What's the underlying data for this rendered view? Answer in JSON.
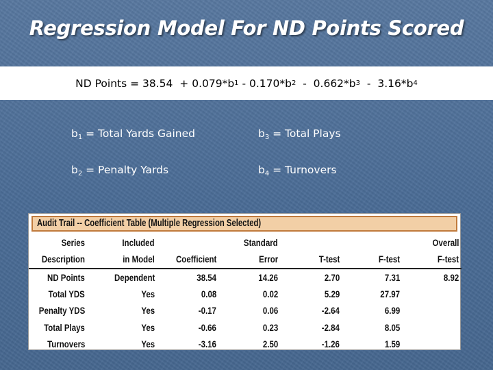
{
  "slide": {
    "title": "Regression Model For ND Points Scored",
    "equation": {
      "lhs": "ND Points = 38.54",
      "terms": [
        {
          "sign": "+",
          "coef": "0.079",
          "var": "b",
          "sub": "1"
        },
        {
          "sign": "-",
          "coef": "0.170",
          "var": "b",
          "sub": "2"
        },
        {
          "sign": "-",
          "coef": "0.662",
          "var": "b",
          "sub": "3"
        },
        {
          "sign": "-",
          "coef": "3.16",
          "var": "b",
          "sub": "4"
        }
      ]
    },
    "definitions": [
      {
        "var": "b",
        "sub": "1",
        "text": " = Total Yards Gained"
      },
      {
        "var": "b",
        "sub": "3",
        "text": " = Total Plays"
      },
      {
        "var": "b",
        "sub": "2",
        "text": " = Penalty Yards"
      },
      {
        "var": "b",
        "sub": "4",
        "text": " = Turnovers"
      }
    ]
  },
  "coef_table": {
    "caption": "Audit Trail -- Coefficient Table (Multiple Regression Selected)",
    "header_row1": [
      "Series",
      "Included",
      "",
      "Standard",
      "",
      "",
      "Overall"
    ],
    "header_row2": [
      "Description",
      "in Model",
      "Coefficient",
      "Error",
      "T-test",
      "F-test",
      "F-test"
    ],
    "rows": [
      [
        "ND Points",
        "Dependent",
        "38.54",
        "14.26",
        "2.70",
        "7.31",
        "8.92"
      ],
      [
        "Total YDS",
        "Yes",
        "0.08",
        "0.02",
        "5.29",
        "27.97",
        ""
      ],
      [
        "Penalty YDS",
        "Yes",
        "-0.17",
        "0.06",
        "-2.64",
        "6.99",
        ""
      ],
      [
        "Total Plays",
        "Yes",
        "-0.66",
        "0.23",
        "-2.84",
        "8.05",
        ""
      ],
      [
        "Turnovers",
        "Yes",
        "-3.16",
        "2.50",
        "-1.26",
        "1.59",
        ""
      ]
    ]
  }
}
